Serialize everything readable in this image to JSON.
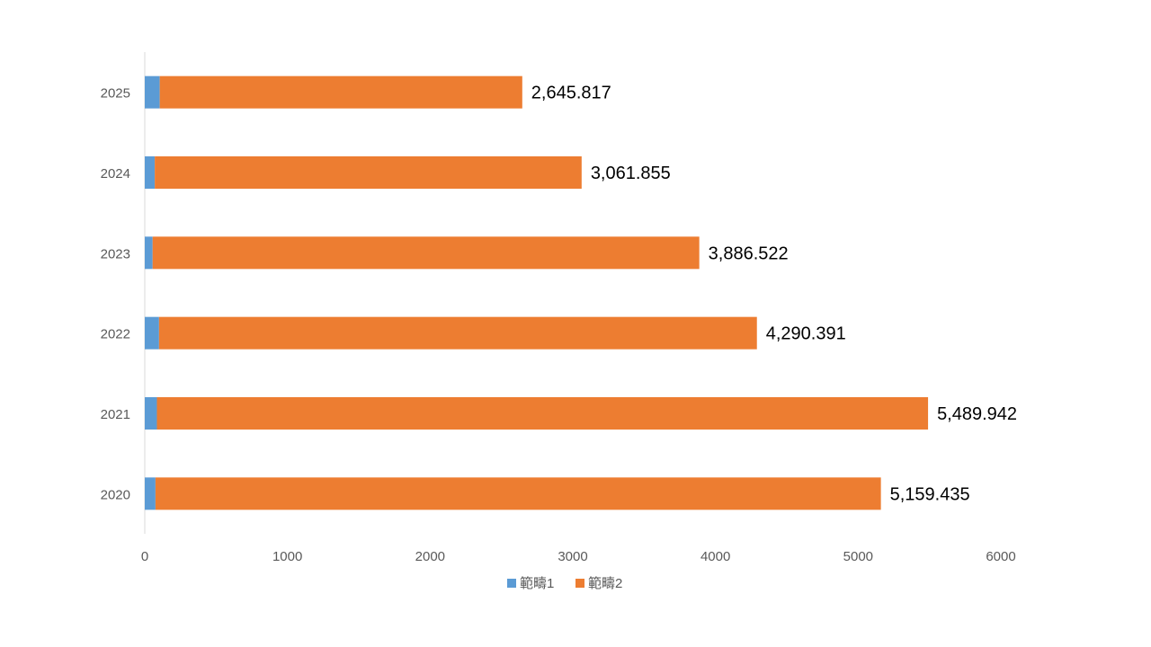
{
  "chart_data": {
    "type": "bar",
    "orientation": "horizontal",
    "stacked": true,
    "title": "",
    "xlabel": "",
    "ylabel": "",
    "categories": [
      "2020",
      "2021",
      "2022",
      "2023",
      "2024",
      "2025"
    ],
    "series": [
      {
        "name": "範疇1",
        "color": "#5b9bd5",
        "values": [
          75,
          85,
          100,
          55,
          70,
          105
        ]
      },
      {
        "name": "範疇2",
        "color": "#ed7d31",
        "values": [
          5084.435,
          5404.942,
          4190.391,
          3831.522,
          2991.855,
          2540.817
        ]
      }
    ],
    "data_labels": [
      "5,159.435",
      "5,489.942",
      "4,290.391",
      "3,886.522",
      "3,061.855",
      "2,645.817"
    ],
    "xlim": [
      0,
      6000
    ],
    "x_ticks": [
      0,
      1000,
      2000,
      3000,
      4000,
      5000,
      6000
    ],
    "grid": false,
    "legend_position": "bottom"
  }
}
